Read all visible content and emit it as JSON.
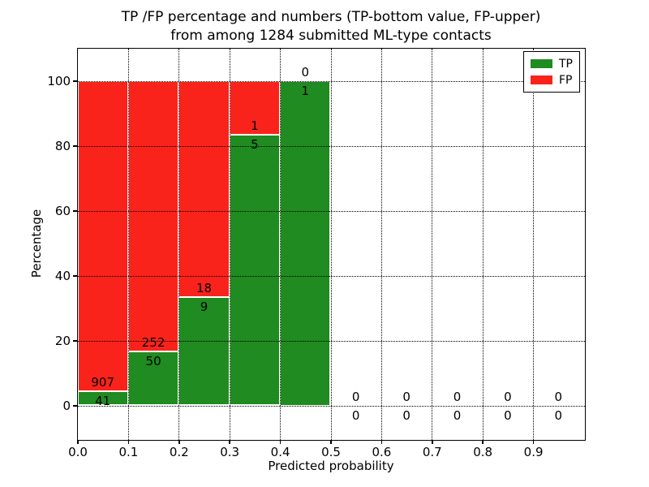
{
  "chart_data": {
    "type": "bar",
    "stacked": "percent",
    "title": "TP /FP percentage and numbers (TP-bottom value, FP-upper)\nfrom among 1284 submitted ML-type contacts",
    "title_lines": [
      "TP /FP percentage and numbers (TP-bottom value, FP-upper)",
      "from among 1284 submitted ML-type contacts"
    ],
    "xlabel": "Predicted probability",
    "ylabel": "Percentage",
    "xlim": [
      0.0,
      1.0
    ],
    "ylim": [
      -10.25,
      110
    ],
    "xticks": [
      0.0,
      0.1,
      0.2,
      0.3,
      0.4,
      0.5,
      0.6,
      0.7,
      0.8,
      0.9
    ],
    "xtick_labels": [
      "0.0",
      "0.1",
      "0.2",
      "0.3",
      "0.4",
      "0.5",
      "0.6",
      "0.7",
      "0.8",
      "0.9"
    ],
    "yticks": [
      0,
      20,
      40,
      60,
      80,
      100
    ],
    "grid": true,
    "legend_position": "upper right",
    "legend": [
      {
        "name": "tp",
        "label": "TP",
        "color": "#208b20"
      },
      {
        "name": "fp",
        "label": "FP",
        "color": "#fa231c"
      }
    ],
    "colors": {
      "tp": "#208b20",
      "fp": "#fa231c",
      "grid": "#000000",
      "spine": "#000000"
    },
    "bins": [
      {
        "x0": 0.0,
        "x1": 0.1,
        "tp": 41,
        "fp": 907
      },
      {
        "x0": 0.1,
        "x1": 0.2,
        "tp": 50,
        "fp": 252
      },
      {
        "x0": 0.2,
        "x1": 0.3,
        "tp": 9,
        "fp": 18
      },
      {
        "x0": 0.3,
        "x1": 0.4,
        "tp": 5,
        "fp": 1
      },
      {
        "x0": 0.4,
        "x1": 0.5,
        "tp": 1,
        "fp": 0
      },
      {
        "x0": 0.5,
        "x1": 0.6,
        "tp": 0,
        "fp": 0
      },
      {
        "x0": 0.6,
        "x1": 0.7,
        "tp": 0,
        "fp": 0
      },
      {
        "x0": 0.7,
        "x1": 0.8,
        "tp": 0,
        "fp": 0
      },
      {
        "x0": 0.8,
        "x1": 0.9,
        "tp": 0,
        "fp": 0
      },
      {
        "x0": 0.9,
        "x1": 1.0,
        "tp": 0,
        "fp": 0
      }
    ]
  }
}
